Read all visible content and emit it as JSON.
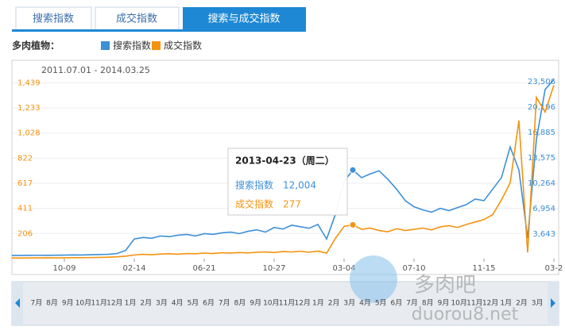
{
  "tabs": [
    "搜索指数",
    "成交指数",
    "搜索与成交指数"
  ],
  "chart_data": {
    "type": "line",
    "legend_title": "多肉植物：",
    "subtitle": "2011.07.01 - 2014.03.25",
    "categories": [
      null,
      null,
      null,
      null,
      null,
      null,
      "10-09",
      null,
      null,
      null,
      null,
      null,
      null,
      null,
      "02-14",
      null,
      null,
      null,
      null,
      null,
      null,
      null,
      "06-21",
      null,
      null,
      null,
      null,
      null,
      null,
      null,
      "10-27",
      null,
      null,
      null,
      null,
      null,
      null,
      null,
      "03-04",
      null,
      null,
      null,
      null,
      null,
      null,
      null,
      "07-10",
      null,
      null,
      null,
      null,
      null,
      null,
      null,
      "11-15",
      null,
      null,
      null,
      null,
      null,
      null,
      null,
      "03-2"
    ],
    "series": [
      {
        "name": "搜索指数",
        "color": "#3d8fd8",
        "axis": "y2",
        "values": [
          850,
          860,
          870,
          880,
          870,
          890,
          900,
          920,
          910,
          950,
          980,
          1000,
          1100,
          1500,
          3000,
          3200,
          3100,
          3400,
          3300,
          3500,
          3600,
          3400,
          3700,
          3600,
          3800,
          3900,
          3700,
          4000,
          4200,
          3900,
          4500,
          4300,
          4800,
          4600,
          4400,
          4900,
          3000,
          6200,
          10500,
          12004,
          11000,
          11500,
          11900,
          10800,
          9500,
          8000,
          7200,
          6800,
          6500,
          7000,
          6700,
          7100,
          7500,
          8200,
          8000,
          9500,
          11000,
          15000,
          12000,
          3100,
          16000,
          22500,
          23800
        ]
      },
      {
        "name": "成交指数",
        "color": "#f5930f",
        "values": [
          5,
          5,
          6,
          6,
          7,
          6,
          7,
          8,
          8,
          9,
          10,
          12,
          15,
          20,
          30,
          35,
          32,
          38,
          40,
          36,
          42,
          40,
          45,
          42,
          48,
          46,
          50,
          47,
          52,
          55,
          50,
          58,
          55,
          60,
          52,
          62,
          45,
          165,
          264,
          277,
          240,
          250,
          230,
          220,
          245,
          230,
          240,
          250,
          235,
          260,
          270,
          255,
          280,
          300,
          320,
          360,
          480,
          620,
          1130,
          50,
          1320,
          1200,
          1420
        ]
      }
    ],
    "ylim": [
      0,
      1500
    ],
    "yticks": [
      206,
      411,
      617,
      822,
      {
        "value": 1028,
        "label": "1,028"
      },
      {
        "value": 1233,
        "label": "1,233"
      },
      {
        "value": 1439,
        "label": "1,439"
      }
    ],
    "y2lim": [
      440,
      24340
    ],
    "y2ticks": [
      {
        "value": 3643,
        "label": "3,643"
      },
      {
        "value": 6954,
        "label": "6,954"
      },
      {
        "value": 10264,
        "label": "10,264"
      },
      {
        "value": 13575,
        "label": "13,575"
      },
      {
        "value": 16885,
        "label": "16,885"
      },
      {
        "value": 20196,
        "label": "20,196"
      },
      {
        "value": 23506,
        "label": "23,506"
      }
    ],
    "grid": true,
    "tooltip": {
      "title": "2013-04-23（周二）",
      "items": [
        {
          "name": "搜索指数",
          "text": "12,004"
        },
        {
          "name": "成交指数",
          "text": "277"
        }
      ]
    }
  },
  "navigator": [
    "7月",
    "8月",
    "9月",
    "10月",
    "11月",
    "12月",
    "1月",
    "2月",
    "3月",
    "4月",
    "5月",
    "6月",
    "7月",
    "8月",
    "9月",
    "10月",
    "11月",
    "12月",
    "1月",
    "2月",
    "3月",
    "4月",
    "5月",
    "6月",
    "7月",
    "8月",
    "9月",
    "10月",
    "11月",
    "12月",
    "1月",
    "2月",
    "3月"
  ],
  "watermark": {
    "name": "多肉吧",
    "url": "duorou8.net"
  }
}
